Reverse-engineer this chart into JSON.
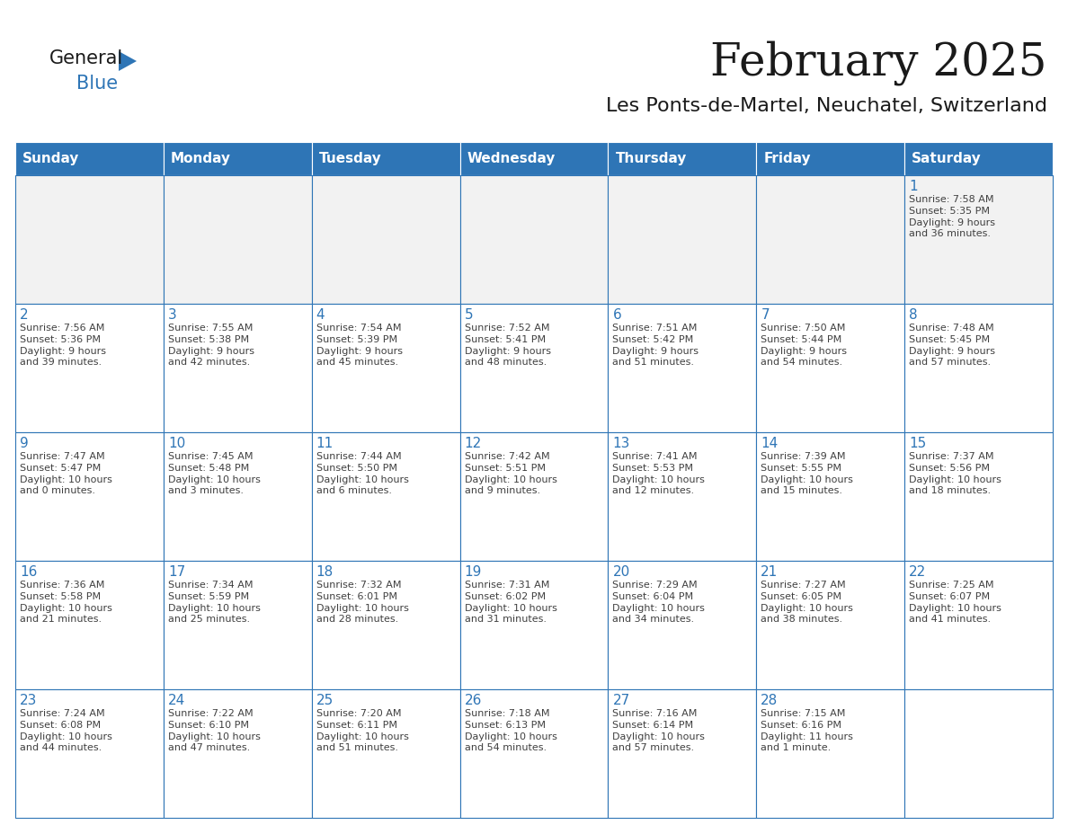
{
  "title": "February 2025",
  "subtitle": "Les Ponts-de-Martel, Neuchatel, Switzerland",
  "header_bg_color": "#2E75B6",
  "header_text_color": "#FFFFFF",
  "cell_border_color": "#2E75B6",
  "day_number_color": "#2E75B6",
  "info_text_color": "#404040",
  "background_color": "#FFFFFF",
  "cell_alt_bg": "#F2F2F2",
  "days_of_week": [
    "Sunday",
    "Monday",
    "Tuesday",
    "Wednesday",
    "Thursday",
    "Friday",
    "Saturday"
  ],
  "weeks": [
    [
      {
        "day": "",
        "info": ""
      },
      {
        "day": "",
        "info": ""
      },
      {
        "day": "",
        "info": ""
      },
      {
        "day": "",
        "info": ""
      },
      {
        "day": "",
        "info": ""
      },
      {
        "day": "",
        "info": ""
      },
      {
        "day": "1",
        "info": "Sunrise: 7:58 AM\nSunset: 5:35 PM\nDaylight: 9 hours\nand 36 minutes."
      }
    ],
    [
      {
        "day": "2",
        "info": "Sunrise: 7:56 AM\nSunset: 5:36 PM\nDaylight: 9 hours\nand 39 minutes."
      },
      {
        "day": "3",
        "info": "Sunrise: 7:55 AM\nSunset: 5:38 PM\nDaylight: 9 hours\nand 42 minutes."
      },
      {
        "day": "4",
        "info": "Sunrise: 7:54 AM\nSunset: 5:39 PM\nDaylight: 9 hours\nand 45 minutes."
      },
      {
        "day": "5",
        "info": "Sunrise: 7:52 AM\nSunset: 5:41 PM\nDaylight: 9 hours\nand 48 minutes."
      },
      {
        "day": "6",
        "info": "Sunrise: 7:51 AM\nSunset: 5:42 PM\nDaylight: 9 hours\nand 51 minutes."
      },
      {
        "day": "7",
        "info": "Sunrise: 7:50 AM\nSunset: 5:44 PM\nDaylight: 9 hours\nand 54 minutes."
      },
      {
        "day": "8",
        "info": "Sunrise: 7:48 AM\nSunset: 5:45 PM\nDaylight: 9 hours\nand 57 minutes."
      }
    ],
    [
      {
        "day": "9",
        "info": "Sunrise: 7:47 AM\nSunset: 5:47 PM\nDaylight: 10 hours\nand 0 minutes."
      },
      {
        "day": "10",
        "info": "Sunrise: 7:45 AM\nSunset: 5:48 PM\nDaylight: 10 hours\nand 3 minutes."
      },
      {
        "day": "11",
        "info": "Sunrise: 7:44 AM\nSunset: 5:50 PM\nDaylight: 10 hours\nand 6 minutes."
      },
      {
        "day": "12",
        "info": "Sunrise: 7:42 AM\nSunset: 5:51 PM\nDaylight: 10 hours\nand 9 minutes."
      },
      {
        "day": "13",
        "info": "Sunrise: 7:41 AM\nSunset: 5:53 PM\nDaylight: 10 hours\nand 12 minutes."
      },
      {
        "day": "14",
        "info": "Sunrise: 7:39 AM\nSunset: 5:55 PM\nDaylight: 10 hours\nand 15 minutes."
      },
      {
        "day": "15",
        "info": "Sunrise: 7:37 AM\nSunset: 5:56 PM\nDaylight: 10 hours\nand 18 minutes."
      }
    ],
    [
      {
        "day": "16",
        "info": "Sunrise: 7:36 AM\nSunset: 5:58 PM\nDaylight: 10 hours\nand 21 minutes."
      },
      {
        "day": "17",
        "info": "Sunrise: 7:34 AM\nSunset: 5:59 PM\nDaylight: 10 hours\nand 25 minutes."
      },
      {
        "day": "18",
        "info": "Sunrise: 7:32 AM\nSunset: 6:01 PM\nDaylight: 10 hours\nand 28 minutes."
      },
      {
        "day": "19",
        "info": "Sunrise: 7:31 AM\nSunset: 6:02 PM\nDaylight: 10 hours\nand 31 minutes."
      },
      {
        "day": "20",
        "info": "Sunrise: 7:29 AM\nSunset: 6:04 PM\nDaylight: 10 hours\nand 34 minutes."
      },
      {
        "day": "21",
        "info": "Sunrise: 7:27 AM\nSunset: 6:05 PM\nDaylight: 10 hours\nand 38 minutes."
      },
      {
        "day": "22",
        "info": "Sunrise: 7:25 AM\nSunset: 6:07 PM\nDaylight: 10 hours\nand 41 minutes."
      }
    ],
    [
      {
        "day": "23",
        "info": "Sunrise: 7:24 AM\nSunset: 6:08 PM\nDaylight: 10 hours\nand 44 minutes."
      },
      {
        "day": "24",
        "info": "Sunrise: 7:22 AM\nSunset: 6:10 PM\nDaylight: 10 hours\nand 47 minutes."
      },
      {
        "day": "25",
        "info": "Sunrise: 7:20 AM\nSunset: 6:11 PM\nDaylight: 10 hours\nand 51 minutes."
      },
      {
        "day": "26",
        "info": "Sunrise: 7:18 AM\nSunset: 6:13 PM\nDaylight: 10 hours\nand 54 minutes."
      },
      {
        "day": "27",
        "info": "Sunrise: 7:16 AM\nSunset: 6:14 PM\nDaylight: 10 hours\nand 57 minutes."
      },
      {
        "day": "28",
        "info": "Sunrise: 7:15 AM\nSunset: 6:16 PM\nDaylight: 11 hours\nand 1 minute."
      },
      {
        "day": "",
        "info": ""
      }
    ]
  ]
}
